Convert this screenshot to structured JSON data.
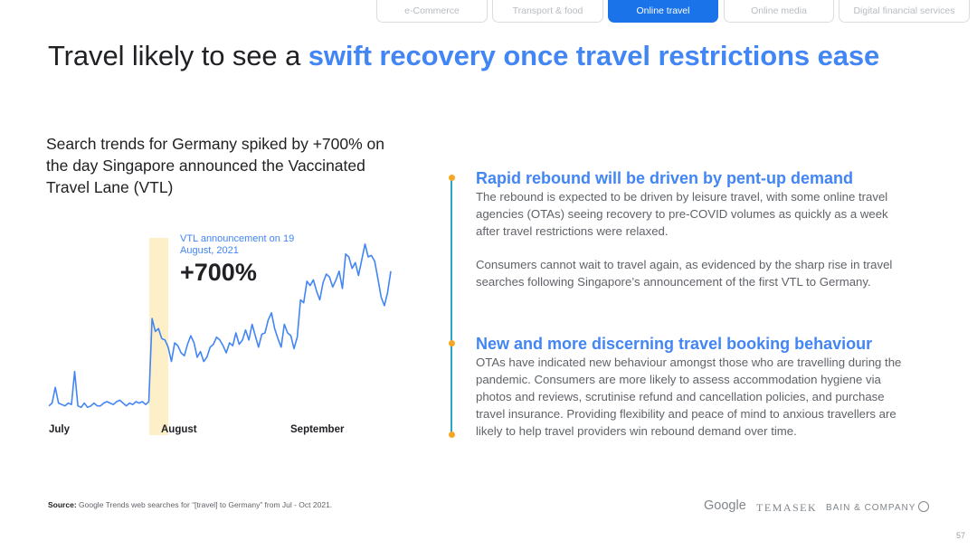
{
  "nav": {
    "tabs": [
      {
        "label": "e-Commerce",
        "active": false
      },
      {
        "label": "Transport & food",
        "active": false
      },
      {
        "label": "Online travel",
        "active": true
      },
      {
        "label": "Online media",
        "active": false
      },
      {
        "label": "Digital financial services",
        "active": false
      }
    ]
  },
  "header": {
    "title_plain": "Travel likely to see a ",
    "title_highlight": "swift recovery once travel restrictions ease"
  },
  "left": {
    "subtitle": "Search trends for Germany spiked by +700% on the day Singapore announced the Vaccinated Travel Lane (VTL)",
    "annotation": "VTL announcement on 19 August, 2021",
    "spike_label": "+700%"
  },
  "chart_data": {
    "type": "line",
    "x_labels": [
      "July",
      "August",
      "September"
    ],
    "series": [
      {
        "values": [
          9,
          11,
          22,
          11,
          10,
          9,
          11,
          10,
          33,
          9,
          8,
          11,
          8,
          9,
          11,
          9,
          9,
          11,
          12,
          11,
          10,
          12,
          13,
          11,
          9,
          11,
          10,
          12,
          11,
          12,
          10,
          12,
          70,
          61,
          63,
          56,
          55,
          50,
          40,
          53,
          51,
          46,
          44,
          52,
          58,
          53,
          43,
          47,
          40,
          43,
          50,
          52,
          57,
          55,
          51,
          46,
          53,
          51,
          60,
          52,
          55,
          62,
          55,
          66,
          58,
          50,
          59,
          60,
          69,
          74,
          63,
          56,
          50,
          66,
          60,
          58,
          49,
          57,
          83,
          81,
          96,
          93,
          97,
          89,
          83,
          95,
          101,
          99,
          92,
          97,
          103,
          91,
          115,
          113,
          105,
          109,
          100,
          111,
          122,
          113,
          114,
          110,
          98,
          85,
          79,
          88,
          103
        ],
        "color": "#4285f4"
      }
    ],
    "highlight": {
      "label": "VTL announcement on 19 August, 2021",
      "value_label": "+700%",
      "color": "#fdf0c8"
    }
  },
  "sections": [
    {
      "heading": "Rapid rebound will be driven by pent-up demand",
      "paragraphs": [
        "The rebound is expected to be driven by leisure travel, with some online travel agencies (OTAs) seeing recovery to pre-COVID volumes as quickly as a week after travel restrictions were relaxed.",
        "Consumers cannot wait to travel again, as evidenced by the sharp rise in travel searches following Singapore’s announcement of the first VTL to Germany."
      ]
    },
    {
      "heading": "New and more discerning travel booking behaviour",
      "paragraphs": [
        "OTAs have indicated new behaviour amongst those who are travelling during the pandemic. Consumers are more likely to assess accommodation hygiene via photos and reviews, scrutinise refund and cancellation policies, and purchase travel insurance. Providing flexibility and peace of mind to anxious travellers are likely to help travel providers win rebound demand over time."
      ]
    }
  ],
  "footer": {
    "source_label": "Source:",
    "source_text": " Google Trends web searches for “[travel] to Germany” from Jul - Oct 2021.",
    "logos": [
      "Google",
      "TEMASEK",
      "BAIN & COMPANY"
    ],
    "page_number": "57"
  },
  "colors": {
    "accent": "#4285f4",
    "active_tab": "#1a73e8",
    "timeline": "#26a8c6",
    "timeline_dot": "#f5a623",
    "highlight_band": "#fdf0c8"
  }
}
